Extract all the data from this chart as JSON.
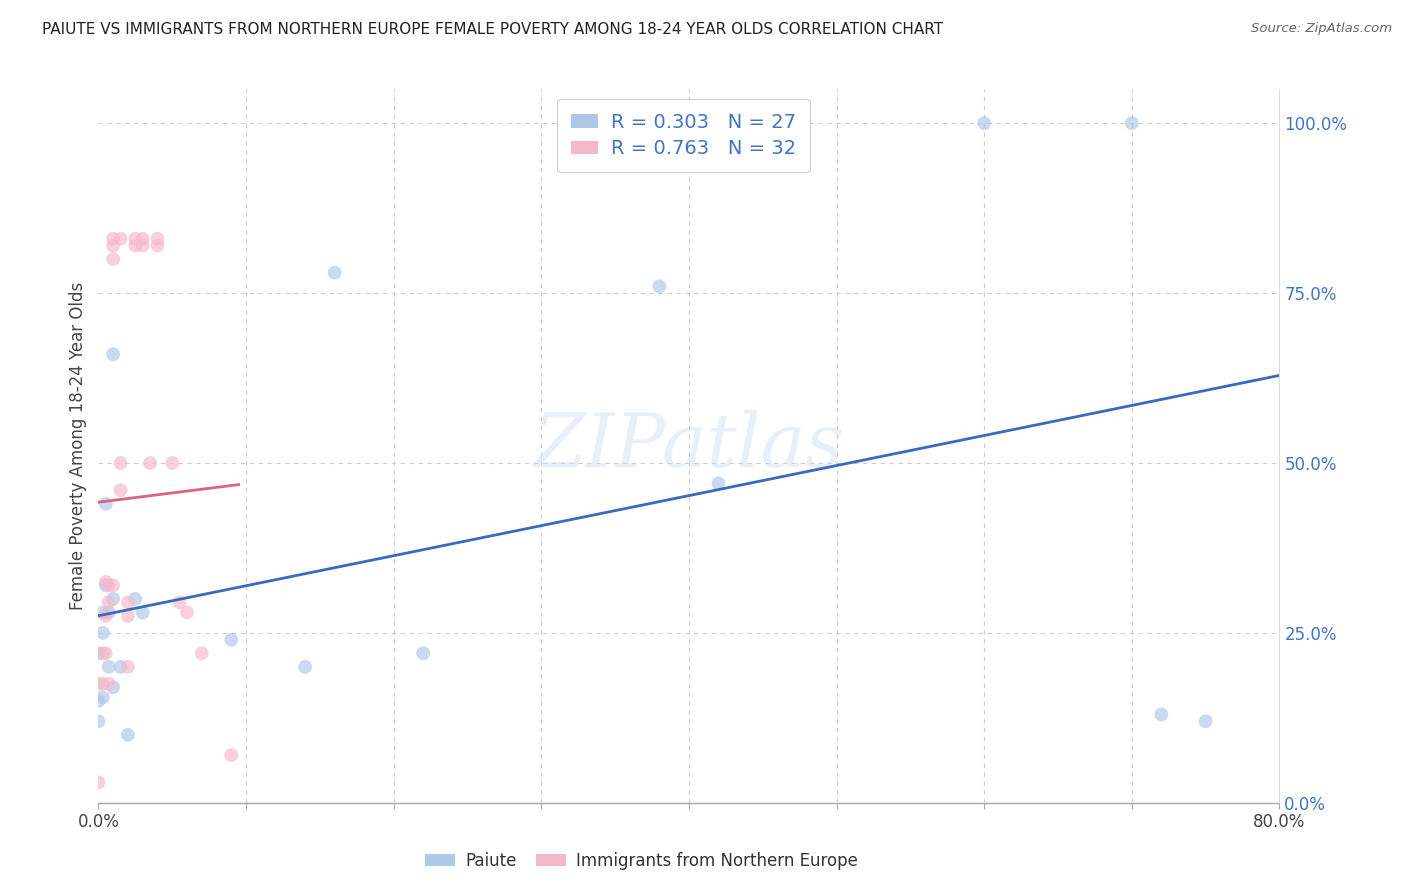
{
  "title": "PAIUTE VS IMMIGRANTS FROM NORTHERN EUROPE FEMALE POVERTY AMONG 18-24 YEAR OLDS CORRELATION CHART",
  "source": "Source: ZipAtlas.com",
  "ylabel": "Female Poverty Among 18-24 Year Olds",
  "watermark": "ZIPatlas",
  "paiute_R": 0.303,
  "paiute_N": 27,
  "immigrants_R": 0.763,
  "immigrants_N": 32,
  "paiute_color": "#aec6e8",
  "immigrants_color": "#f4b8c8",
  "paiute_line_color": "#3a6abf",
  "immigrants_line_color": "#e06080",
  "right_axis_color": "#4472c4",
  "paiute_x": [
    0.0,
    0.0,
    0.0,
    0.003,
    0.003,
    0.003,
    0.005,
    0.005,
    0.007,
    0.007,
    0.01,
    0.01,
    0.01,
    0.015,
    0.02,
    0.025,
    0.03,
    0.09,
    0.14,
    0.16,
    0.22,
    0.38,
    0.42,
    0.6,
    0.7,
    0.72,
    0.75
  ],
  "paiute_y": [
    0.12,
    0.22,
    0.15,
    0.25,
    0.28,
    0.155,
    0.32,
    0.44,
    0.28,
    0.2,
    0.66,
    0.3,
    0.17,
    0.2,
    0.1,
    0.3,
    0.28,
    0.24,
    0.2,
    0.78,
    0.22,
    0.76,
    0.47,
    1.0,
    1.0,
    0.13,
    0.12
  ],
  "immigrants_x": [
    0.0,
    0.0,
    0.003,
    0.003,
    0.005,
    0.005,
    0.005,
    0.007,
    0.007,
    0.007,
    0.01,
    0.01,
    0.01,
    0.01,
    0.015,
    0.015,
    0.015,
    0.02,
    0.02,
    0.02,
    0.025,
    0.025,
    0.03,
    0.03,
    0.035,
    0.04,
    0.04,
    0.05,
    0.055,
    0.06,
    0.07,
    0.09
  ],
  "immigrants_y": [
    0.03,
    0.175,
    0.22,
    0.175,
    0.325,
    0.275,
    0.22,
    0.175,
    0.32,
    0.295,
    0.83,
    0.82,
    0.8,
    0.32,
    0.83,
    0.5,
    0.46,
    0.295,
    0.275,
    0.2,
    0.83,
    0.82,
    0.83,
    0.82,
    0.5,
    0.83,
    0.82,
    0.5,
    0.295,
    0.28,
    0.22,
    0.07
  ],
  "xlim": [
    0.0,
    0.8
  ],
  "ylim": [
    0.0,
    1.05
  ],
  "right_yticks": [
    0.0,
    0.25,
    0.5,
    0.75,
    1.0
  ],
  "right_yticklabels": [
    "0.0%",
    "25.0%",
    "50.0%",
    "75.0%",
    "100.0%"
  ],
  "xtick_positions": [
    0.0,
    0.1,
    0.2,
    0.3,
    0.4,
    0.5,
    0.6,
    0.7,
    0.8
  ],
  "grid_color": "#cccccc",
  "background_color": "#ffffff",
  "marker_size": 100,
  "marker_alpha": 0.65,
  "legend_fontsize": 14,
  "title_fontsize": 11,
  "ylabel_fontsize": 12,
  "tick_fontsize": 12
}
